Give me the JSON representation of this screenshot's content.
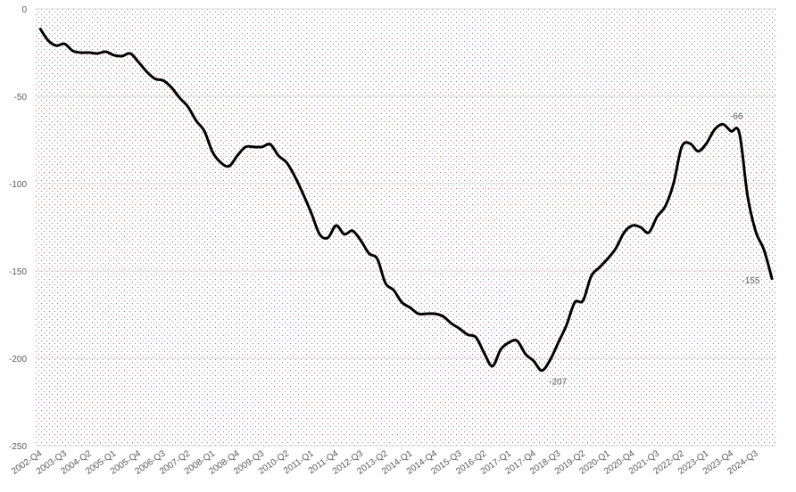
{
  "chart_data": {
    "type": "line",
    "categories": [
      "2002-Q4",
      null,
      null,
      "2003-Q3",
      null,
      null,
      "2004-Q2",
      null,
      null,
      "2005-Q1",
      null,
      null,
      "2005-Q4",
      null,
      null,
      "2006-Q3",
      null,
      null,
      "2007-Q2",
      null,
      null,
      "2008-Q1",
      null,
      null,
      "2008-Q4",
      null,
      null,
      "2009-Q3",
      null,
      null,
      "2010-Q2",
      null,
      null,
      "2011-Q1",
      null,
      null,
      "2011-Q4",
      null,
      null,
      "2012-Q3",
      null,
      null,
      "2013-Q2",
      null,
      null,
      "2014-Q1",
      null,
      null,
      "2014-Q4",
      null,
      null,
      "2015-Q3",
      null,
      null,
      "2016-Q2",
      null,
      null,
      "2017-Q1",
      null,
      null,
      "2017-Q4",
      null,
      null,
      "2018-Q3",
      null,
      null,
      "2019-Q2",
      null,
      null,
      "2020-Q1",
      null,
      null,
      "2020-Q4",
      null,
      null,
      "2021-Q3",
      null,
      null,
      "2022-Q2",
      null,
      null,
      "2023-Q1",
      null,
      null,
      "2023-Q4",
      null,
      null,
      "2024-Q3",
      null,
      null
    ],
    "series": [
      {
        "color": "#000000",
        "values": [
          -11,
          -18,
          -21,
          -20,
          -24,
          -25,
          -25,
          -25.5,
          -24.5,
          -26.5,
          -27,
          -25.5,
          -30.5,
          -36,
          -40,
          -41,
          -45,
          -51,
          -56,
          -64,
          -70,
          -82,
          -88,
          -90,
          -84,
          -79,
          -79,
          -79,
          -77.5,
          -84,
          -88,
          -96,
          -106,
          -117,
          -129,
          -131,
          -124,
          -129,
          -127,
          -132.5,
          -140,
          -143,
          -157,
          -161,
          -168,
          -171,
          -174.5,
          -174.5,
          -174.5,
          -176,
          -180,
          -183,
          -186.5,
          -188,
          -197,
          -204.5,
          -195,
          -191,
          -190,
          -197.5,
          -201.5,
          -207,
          -201,
          -191,
          -181,
          -168,
          -167,
          -153,
          -148,
          -143,
          -137,
          -128,
          -124,
          -125,
          -128,
          -119,
          -113,
          -100,
          -79,
          -77,
          -81.5,
          -77,
          -69,
          -66,
          -70,
          -71,
          -107,
          -127.5,
          -138,
          -155
        ],
        "value_labels": [
          null,
          null,
          null,
          null,
          null,
          null,
          null,
          null,
          null,
          null,
          null,
          null,
          null,
          null,
          null,
          null,
          null,
          null,
          null,
          null,
          null,
          null,
          null,
          null,
          null,
          null,
          null,
          null,
          null,
          null,
          null,
          null,
          null,
          null,
          null,
          null,
          null,
          null,
          null,
          null,
          null,
          null,
          null,
          null,
          null,
          null,
          null,
          null,
          null,
          null,
          null,
          null,
          null,
          null,
          null,
          null,
          null,
          null,
          null,
          null,
          null,
          "-207",
          null,
          null,
          null,
          null,
          null,
          null,
          null,
          null,
          null,
          null,
          null,
          null,
          null,
          null,
          null,
          null,
          null,
          null,
          null,
          null,
          null,
          "-66",
          null,
          null,
          null,
          null,
          null,
          "-155"
        ]
      }
    ],
    "ylim": [
      -250,
      0
    ],
    "yticks": [
      -250,
      -200,
      -150,
      -100,
      -50,
      0
    ],
    "grid": true
  }
}
